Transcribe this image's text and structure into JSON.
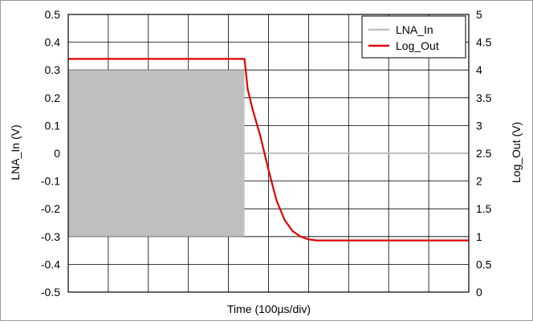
{
  "chart_data": {
    "type": "line",
    "xlabel": "Time (100µs/div)",
    "ylabel_left": "LNA_In (V)",
    "ylabel_right": "Log_Out (V)",
    "x_divisions": 10,
    "ylim_left": [
      -0.5,
      0.5
    ],
    "ylim_right": [
      0,
      5
    ],
    "yticks_left": [
      "0.5",
      "0.4",
      "0.3",
      "0.2",
      "0.1",
      "0",
      "-0.1",
      "-0.2",
      "-0.3",
      "-0.4",
      "-0.5"
    ],
    "yticks_right": [
      "5",
      "4.5",
      "4",
      "3.5",
      "3",
      "2.5",
      "2",
      "1.5",
      "1",
      "0.5",
      "0"
    ],
    "grid": true,
    "legend_position": "top-right",
    "series": [
      {
        "name": "LNA_In",
        "axis": "left",
        "color": "#bfbfbf",
        "style": "burst",
        "burst_amplitude": 0.3,
        "burst_end_div": 4.4,
        "after_value": 0
      },
      {
        "name": "Log_Out",
        "axis": "right",
        "color": "#e00000",
        "x": [
          0,
          4.4,
          4.48,
          4.6,
          4.8,
          5.0,
          5.2,
          5.4,
          5.6,
          5.8,
          6.0,
          6.2,
          6.5,
          7.0,
          8.0,
          10.0
        ],
        "y": [
          4.2,
          4.2,
          3.65,
          3.3,
          2.8,
          2.2,
          1.65,
          1.3,
          1.1,
          1.0,
          0.95,
          0.93,
          0.93,
          0.93,
          0.93,
          0.93
        ]
      }
    ]
  }
}
